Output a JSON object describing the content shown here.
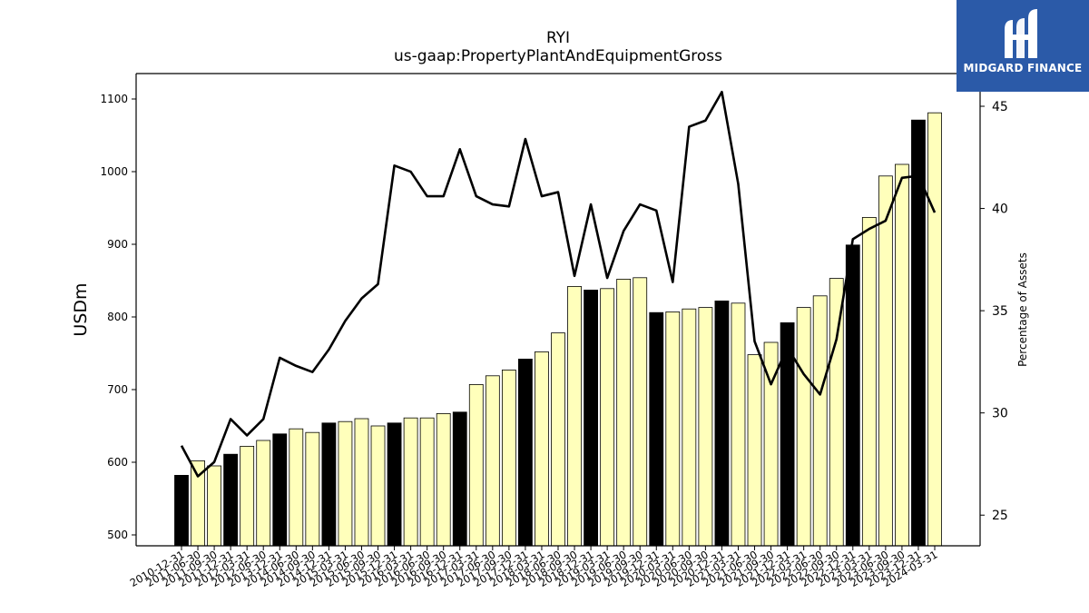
{
  "chart_data": {
    "type": "bar+line",
    "title": "RYI",
    "subtitle": "us-gaap:PropertyPlantAndEquipmentGross",
    "ylabel": "USDm",
    "y2label": "Percentage of Assets",
    "ylim": [
      485,
      1135
    ],
    "y2lim": [
      23.5,
      46.6
    ],
    "yticks": [
      500,
      600,
      700,
      800,
      900,
      1000,
      1100
    ],
    "y2ticks": [
      25,
      30,
      35,
      40,
      45
    ],
    "categories": [
      "2010-12-31",
      "2011-06-30",
      "2011-09-30",
      "2011-12-31",
      "2012-03-31",
      "2012-06-30",
      "2013-12-31",
      "2014-06-30",
      "2014-09-30",
      "2014-12-31",
      "2015-03-31",
      "2015-06-30",
      "2015-09-30",
      "2015-12-31",
      "2016-03-31",
      "2016-06-30",
      "2016-09-30",
      "2016-12-31",
      "2017-03-31",
      "2017-06-30",
      "2017-09-30",
      "2017-12-31",
      "2018-03-31",
      "2018-06-30",
      "2018-09-30",
      "2018-12-31",
      "2019-03-31",
      "2019-06-30",
      "2019-09-30",
      "2019-12-31",
      "2020-03-31",
      "2020-06-30",
      "2020-09-30",
      "2020-12-31",
      "2021-03-31",
      "2021-06-30",
      "2021-09-30",
      "2021-12-31",
      "2022-03-31",
      "2022-06-30",
      "2022-09-30",
      "2022-12-31",
      "2023-03-31",
      "2023-06-30",
      "2023-09-30",
      "2023-12-31",
      "2024-03-31"
    ],
    "values": [
      582,
      602,
      595,
      611,
      622,
      630,
      639,
      646,
      641,
      654,
      656,
      660,
      650,
      654,
      661,
      661,
      667,
      669,
      707,
      719,
      727,
      742,
      752,
      778,
      842,
      837,
      839,
      852,
      854,
      806,
      807,
      811,
      813,
      822,
      819,
      748,
      765,
      792,
      813,
      829,
      853,
      899,
      937,
      994,
      1010,
      1071,
      1081
    ],
    "bar_highlight": [
      true,
      false,
      false,
      true,
      false,
      false,
      true,
      false,
      false,
      true,
      false,
      false,
      false,
      true,
      false,
      false,
      false,
      true,
      false,
      false,
      false,
      true,
      false,
      false,
      false,
      true,
      false,
      false,
      false,
      true,
      false,
      false,
      false,
      true,
      false,
      false,
      false,
      true,
      false,
      false,
      false,
      true,
      false,
      false,
      false,
      true,
      false
    ],
    "pct_of_assets": [
      28.4,
      26.9,
      27.6,
      29.7,
      28.9,
      29.7,
      32.7,
      32.3,
      32.0,
      33.1,
      34.5,
      35.6,
      36.3,
      42.1,
      41.8,
      40.6,
      40.6,
      42.9,
      40.6,
      40.2,
      40.1,
      43.4,
      40.6,
      40.8,
      36.7,
      40.2,
      36.6,
      38.9,
      40.2,
      39.9,
      36.4,
      44.0,
      44.3,
      45.7,
      41.2,
      33.5,
      31.4,
      33.2,
      31.9,
      30.9,
      33.6,
      38.5,
      39.0,
      39.4,
      41.5,
      41.6,
      39.8
    ],
    "colors": {
      "bar_highlight": "#000000",
      "bar_normal": "#ffffbb",
      "bar_edge": "#000000",
      "line": "#000000"
    },
    "grid": false,
    "legend": "none"
  },
  "logo": {
    "text": "MIDGARD FINANCE",
    "background": "#2b5aa8"
  }
}
